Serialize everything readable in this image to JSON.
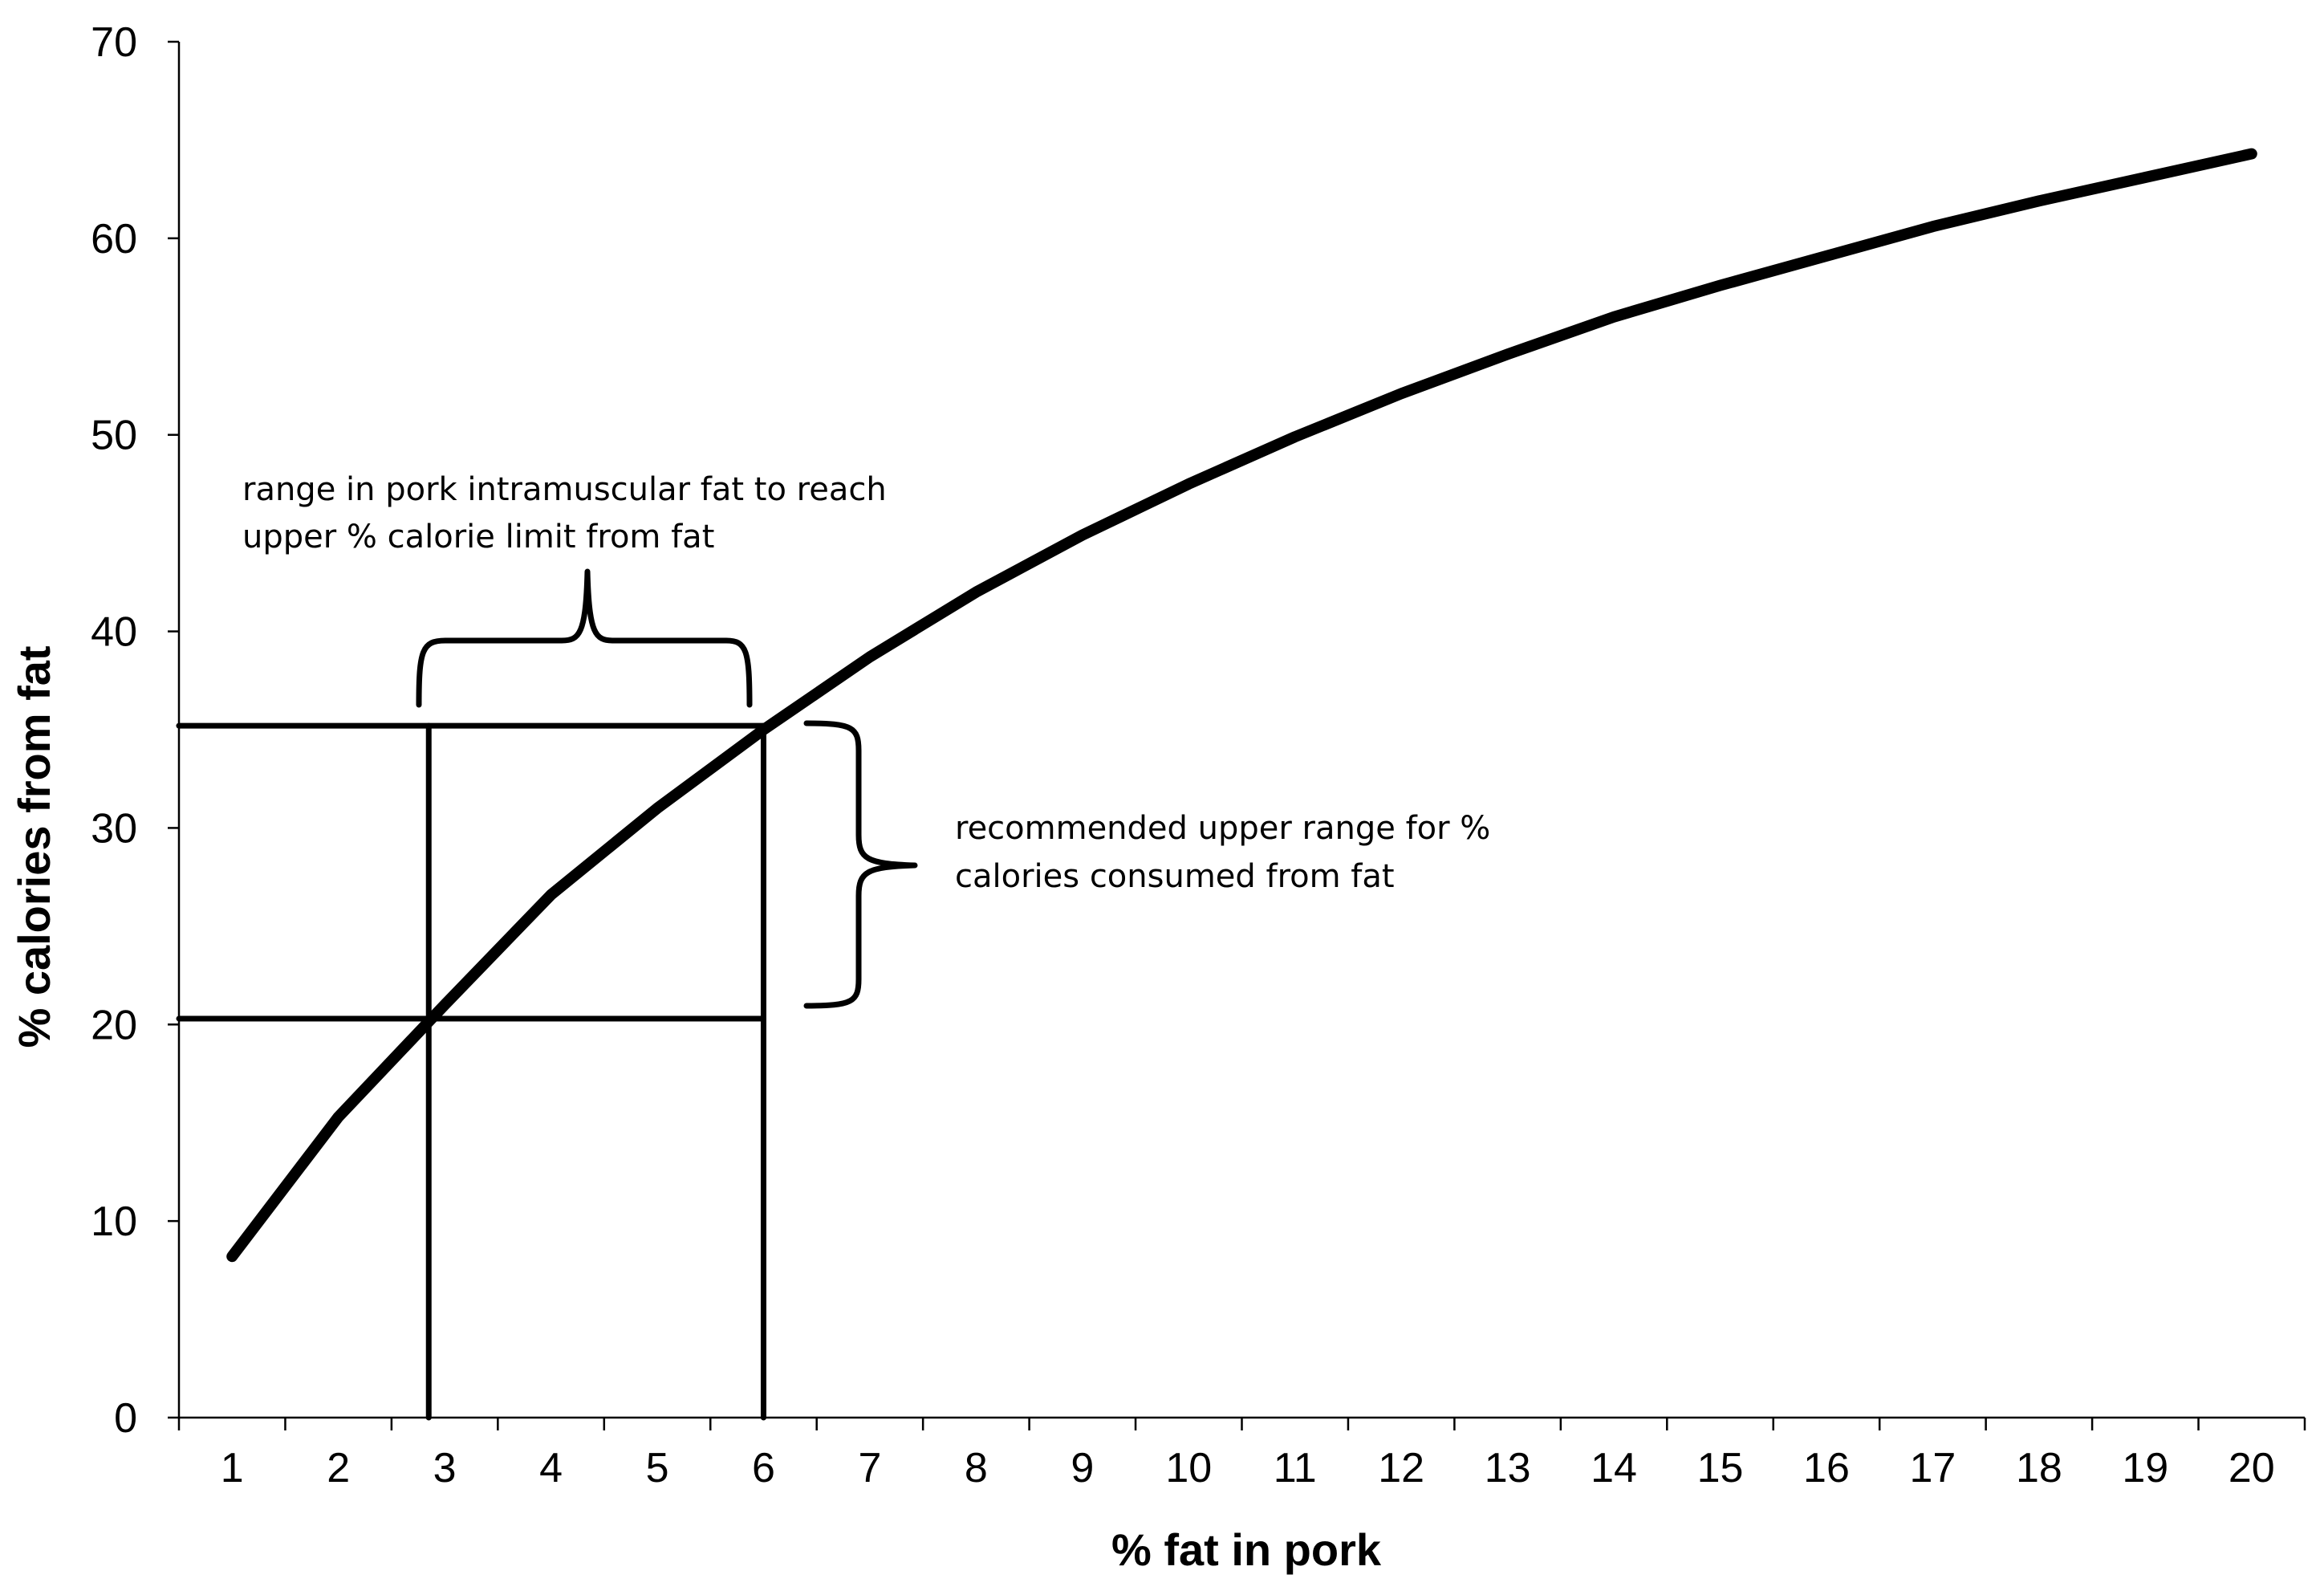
{
  "chart_data": {
    "type": "line",
    "xlabel": "% fat in pork",
    "ylabel": "% calories from fat",
    "xlim": [
      0.5,
      20.5
    ],
    "ylim": [
      0,
      70
    ],
    "x_ticks": [
      1,
      2,
      3,
      4,
      5,
      6,
      7,
      8,
      9,
      10,
      11,
      12,
      13,
      14,
      15,
      16,
      17,
      18,
      19,
      20
    ],
    "y_ticks": [
      0,
      10,
      20,
      30,
      40,
      50,
      60,
      70
    ],
    "grid": false,
    "legend": "none",
    "series": [
      {
        "x": [
          1,
          2,
          3,
          4,
          5,
          6,
          7,
          8,
          9,
          10,
          11,
          12,
          13,
          14,
          15,
          16,
          17,
          18,
          19,
          20
        ],
        "values": [
          8.2,
          15.3,
          21.0,
          26.6,
          31.0,
          35.0,
          38.7,
          42.0,
          44.9,
          47.5,
          49.9,
          52.1,
          54.1,
          56.0,
          57.6,
          59.1,
          60.6,
          61.9,
          63.1,
          64.3
        ]
      }
    ],
    "reference_lines": {
      "horizontal": [
        {
          "y": 35.2,
          "x_from": 0.5,
          "x_to": 6.0
        },
        {
          "y": 20.3,
          "x_from": 0.5,
          "x_to": 6.0
        }
      ],
      "vertical": [
        {
          "x": 2.85,
          "y_from": 0,
          "y_to": 35.2
        },
        {
          "x": 6.0,
          "y_from": 0,
          "y_to": 35.2
        }
      ]
    },
    "annotations": [
      {
        "lines": [
          "range in pork intramuscular fat to reach",
          "upper % calorie limit from fat"
        ]
      },
      {
        "lines": [
          "recommended upper range for %",
          "calories consumed from fat"
        ]
      }
    ]
  }
}
